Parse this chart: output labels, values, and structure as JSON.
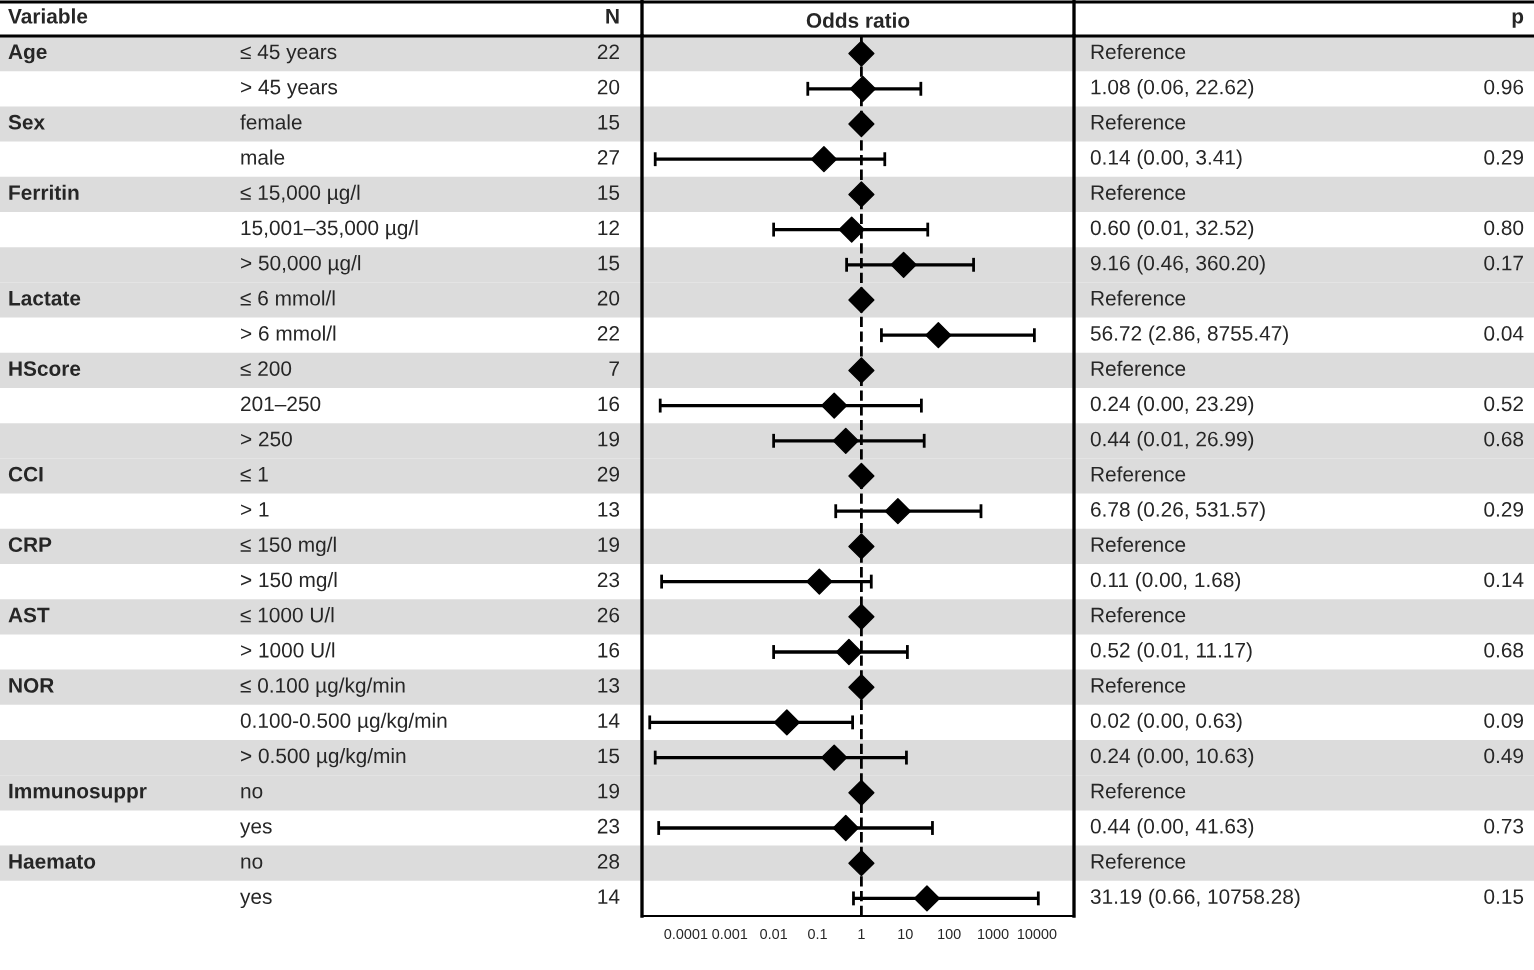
{
  "chart_data": {
    "type": "scatter",
    "orientation": "horizontal",
    "log": "x",
    "xlabel": "Odds ratio",
    "annotations": [
      "Variable",
      "N",
      "p"
    ],
    "y_categories": [
      "≤ 45 years",
      "> 45 years",
      "female",
      "male",
      "≤ 15,000 µg/l",
      "15,001–35,000 µg/l",
      "> 50,000 µg/l",
      "≤ 6 mmol/l",
      "> 6 mmol/l",
      "≤ 200",
      "201–250",
      "> 250",
      "≤ 1",
      "> 1",
      "≤ 150 mg/l",
      "> 150 mg/l",
      "≤ 1000 U/l",
      "> 1000 U/l",
      "≤ 0.100 µg/kg/min",
      "0.100-0.500 µg/kg/min",
      "> 0.500 µg/kg/min",
      "no",
      "yes",
      "no",
      "yes"
    ],
    "cell_labels": [
      [
        "Age",
        "22",
        "Reference",
        null
      ],
      [
        null,
        "20",
        "1.08 (0.06, 22.62)",
        "0.96"
      ],
      [
        "Sex",
        "15",
        "Reference",
        null
      ],
      [
        null,
        "27",
        "0.14 (0.00, 3.41)",
        "0.29"
      ],
      [
        "Ferritin",
        "15",
        "Reference",
        null
      ],
      [
        null,
        "12",
        "0.60 (0.01, 32.52)",
        "0.80"
      ],
      [
        null,
        "15",
        "9.16 (0.46, 360.20)",
        "0.17"
      ],
      [
        "Lactate",
        "20",
        "Reference",
        null
      ],
      [
        null,
        "22",
        "56.72 (2.86, 8755.47)",
        "0.04"
      ],
      [
        "HScore",
        "7",
        "Reference",
        null
      ],
      [
        null,
        "16",
        "0.24 (0.00, 23.29)",
        "0.52"
      ],
      [
        null,
        "19",
        "0.44 (0.01, 26.99)",
        "0.68"
      ],
      [
        "CCI",
        "29",
        "Reference",
        null
      ],
      [
        null,
        "13",
        "6.78 (0.26, 531.57)",
        "0.29"
      ],
      [
        "CRP",
        "19",
        "Reference",
        null
      ],
      [
        null,
        "23",
        "0.11 (0.00, 1.68)",
        "0.14"
      ],
      [
        "AST",
        "26",
        "Reference",
        null
      ],
      [
        null,
        "16",
        "0.52 (0.01, 11.17)",
        "0.68"
      ],
      [
        "NOR",
        "13",
        "Reference",
        null
      ],
      [
        null,
        "14",
        "0.02 (0.00, 0.63)",
        "0.09"
      ],
      [
        null,
        "15",
        "0.24 (0.00, 10.63)",
        "0.49"
      ],
      [
        "Immunosuppr",
        "19",
        "Reference",
        null
      ],
      [
        null,
        "23",
        "0.44 (0.00, 41.63)",
        "0.73"
      ],
      [
        "Haemato",
        "28",
        "Reference",
        null
      ],
      [
        null,
        "14",
        "31.19 (0.66, 10758.28)",
        "0.15"
      ]
    ],
    "series": [
      {
        "color": "#000000",
        "values": [
          1,
          1.08,
          1,
          0.14,
          1,
          0.6,
          9.16,
          1,
          56.72,
          1,
          0.24,
          0.44,
          1,
          6.78,
          1,
          0.11,
          1,
          0.52,
          1,
          0.02,
          0.24,
          1,
          0.44,
          1,
          31.19
        ],
        "errors": [
          null,
          [
            0.06,
            22.62
          ],
          null,
          [
            2e-05,
            3.41
          ],
          null,
          [
            0.01,
            32.52
          ],
          [
            0.46,
            360.2
          ],
          null,
          [
            2.86,
            8755.47
          ],
          null,
          [
            2.6e-05,
            23.29
          ],
          [
            0.01,
            26.99
          ],
          null,
          [
            0.26,
            531.57
          ],
          null,
          [
            2.8e-05,
            1.68
          ],
          null,
          [
            0.01,
            11.17
          ],
          null,
          [
            1.5e-05,
            0.63
          ],
          [
            2e-05,
            10.63
          ],
          null,
          [
            2.4e-05,
            41.63
          ],
          null,
          [
            0.66,
            10758.28
          ]
        ]
      }
    ],
    "marker": "diamond",
    "xlim": [
      1e-05,
      70000
    ],
    "xticks": [
      0.0001,
      0.001,
      0.01,
      0.1,
      1,
      10,
      100,
      1000,
      10000
    ],
    "ref_lines": [
      {
        "axis": "x",
        "value": 1,
        "line_style": "dashed",
        "color": "#000000"
      }
    ],
    "tick_labels": "x",
    "grid": false,
    "legend": false
  }
}
